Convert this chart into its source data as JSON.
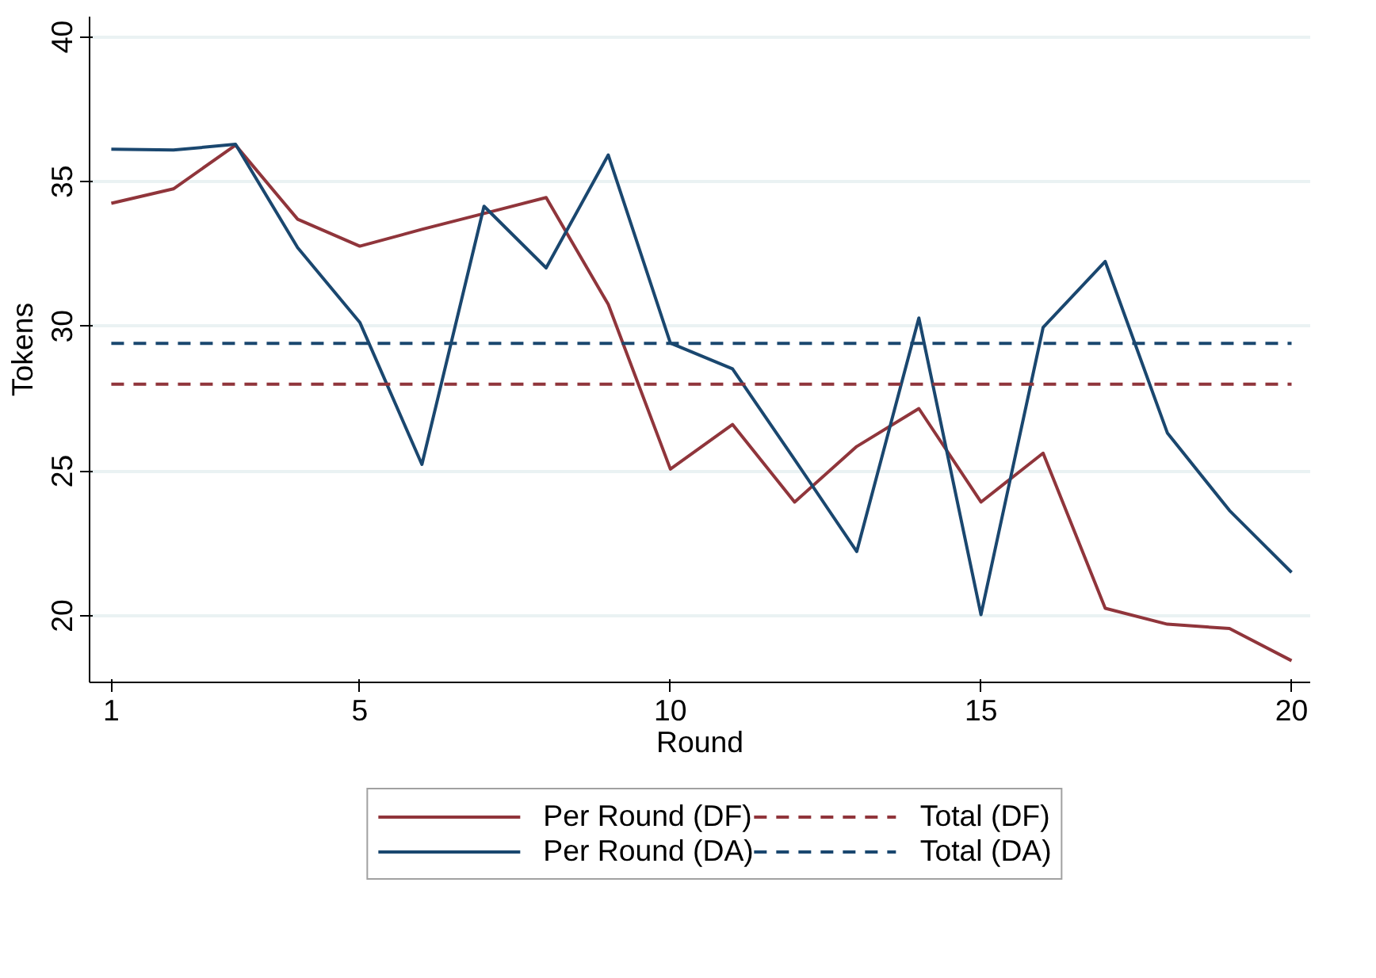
{
  "chart_data": {
    "type": "line",
    "xlabel": "Round",
    "ylabel": "Tokens",
    "x": [
      1,
      2,
      3,
      4,
      5,
      6,
      7,
      8,
      9,
      10,
      11,
      12,
      13,
      14,
      15,
      16,
      17,
      18,
      19,
      20
    ],
    "series": [
      {
        "name": "Per Round (DF)",
        "color": "#90353b",
        "values": [
          34.25,
          34.75,
          36.26,
          33.7,
          32.77,
          33.35,
          33.9,
          34.45,
          30.76,
          25.07,
          26.61,
          23.93,
          25.85,
          27.16,
          23.93,
          25.62,
          20.26,
          19.71,
          19.56,
          18.45
        ]
      },
      {
        "name": "Per Round (DA)",
        "color": "#1a476f",
        "values": [
          36.12,
          36.09,
          36.29,
          32.72,
          30.14,
          25.23,
          34.15,
          32.02,
          35.92,
          29.42,
          28.53,
          25.4,
          22.22,
          30.29,
          20.04,
          29.96,
          32.24,
          26.32,
          23.64,
          21.5
        ]
      }
    ],
    "ref_lines": [
      {
        "axis": "y",
        "value": 28.0,
        "label": "Total (DF)",
        "color": "#90353b",
        "line_style": "dashed"
      },
      {
        "axis": "y",
        "value": 29.41,
        "label": "Total (DA)",
        "color": "#1a476f",
        "line_style": "dashed"
      }
    ],
    "xlim": [
      0.65,
      20.3
    ],
    "ylim": [
      17.7,
      40.7
    ],
    "xticks": [
      1,
      5,
      10,
      15,
      20
    ],
    "yticks": [
      20,
      25,
      30,
      35,
      40
    ],
    "grid": "y",
    "legend": "bottom",
    "line_style": "solid",
    "marker": "none"
  }
}
